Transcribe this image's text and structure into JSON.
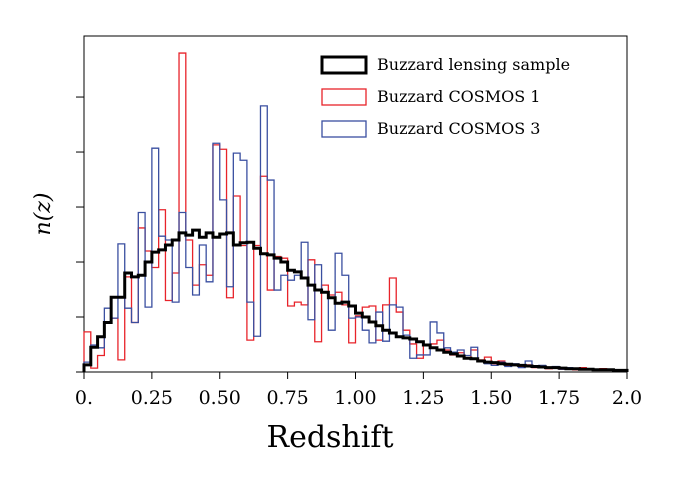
{
  "chart_data": {
    "type": "step-histogram",
    "title": "",
    "xlabel": "Redshift",
    "ylabel": "n(z)",
    "xlim": [
      0,
      2.0
    ],
    "ylim": [
      0,
      6.11
    ],
    "x_ticks": [
      0,
      0.25,
      0.5,
      0.75,
      1.0,
      1.25,
      1.5,
      1.75,
      2.0
    ],
    "x_tick_labels": [
      "0.",
      "0.25",
      "0.50",
      "0.75",
      "1.00",
      "1.25",
      "1.50",
      "1.75",
      "2.0"
    ],
    "y_ticks": [
      0,
      1,
      2,
      3,
      4,
      5
    ],
    "y_tick_labels_shown": false,
    "bin_width": 0.025,
    "legend_position": "top-right",
    "series": [
      {
        "name": "Buzzard lensing sample",
        "color": "#000000",
        "values": [
          0.13,
          0.45,
          0.64,
          0.9,
          1.36,
          1.36,
          1.8,
          1.73,
          1.76,
          2.0,
          2.18,
          2.22,
          2.31,
          2.4,
          2.53,
          2.49,
          2.58,
          2.45,
          2.53,
          2.45,
          2.51,
          2.53,
          2.31,
          2.35,
          2.36,
          2.25,
          2.15,
          2.13,
          2.07,
          2.0,
          1.85,
          1.82,
          1.71,
          1.58,
          1.49,
          1.45,
          1.35,
          1.25,
          1.27,
          1.2,
          1.07,
          1.0,
          0.91,
          0.84,
          0.76,
          0.71,
          0.64,
          0.62,
          0.6,
          0.55,
          0.49,
          0.44,
          0.4,
          0.36,
          0.33,
          0.29,
          0.25,
          0.24,
          0.2,
          0.18,
          0.17,
          0.15,
          0.14,
          0.13,
          0.12,
          0.11,
          0.1,
          0.09,
          0.08,
          0.08,
          0.07,
          0.06,
          0.06,
          0.05,
          0.05,
          0.04,
          0.04,
          0.04,
          0.03,
          0.03
        ]
      },
      {
        "name": "Buzzard COSMOS 1",
        "color": "#e8232a",
        "values": [
          0.73,
          0.07,
          0.3,
          0.9,
          0.98,
          0.22,
          1.73,
          0.9,
          2.62,
          2.2,
          1.9,
          2.95,
          1.3,
          1.8,
          5.8,
          2.4,
          1.58,
          1.95,
          1.76,
          4.13,
          4.05,
          1.35,
          3.2,
          2.3,
          0.58,
          2.3,
          3.56,
          1.49,
          2.1,
          2.07,
          1.2,
          1.27,
          1.22,
          2.04,
          0.55,
          1.58,
          1.4,
          1.45,
          1.22,
          0.53,
          1.02,
          1.18,
          1.2,
          0.58,
          1.22,
          1.71,
          1.09,
          0.76,
          0.51,
          0.25,
          0.49,
          0.51,
          0.58,
          0.4,
          0.31,
          0.35,
          0.25,
          0.4,
          0.22,
          0.27,
          0.15,
          0.2,
          0.12,
          0.14,
          0.1,
          0.13,
          0.08,
          0.1,
          0.06,
          0.09,
          0.05,
          0.07,
          0.04,
          0.08,
          0.05,
          0.04,
          0.06,
          0.03,
          0.04,
          0.03
        ]
      },
      {
        "name": "Buzzard COSMOS 3",
        "color": "#3a4fa0",
        "values": [
          0.18,
          0.49,
          0.44,
          1.16,
          0.98,
          2.33,
          1.16,
          0.9,
          2.9,
          1.18,
          4.07,
          2.47,
          2.4,
          1.27,
          2.9,
          1.9,
          1.4,
          2.31,
          1.64,
          4.16,
          3.13,
          1.55,
          3.98,
          3.85,
          1.27,
          0.65,
          4.84,
          3.49,
          1.49,
          1.76,
          1.67,
          1.76,
          2.36,
          0.95,
          1.95,
          1.45,
          0.76,
          2.16,
          1.76,
          0.98,
          1.0,
          0.76,
          0.53,
          1.09,
          0.56,
          1.22,
          1.18,
          0.67,
          0.25,
          0.31,
          0.31,
          0.91,
          0.71,
          0.44,
          0.36,
          0.4,
          0.3,
          0.45,
          0.2,
          0.15,
          0.12,
          0.18,
          0.1,
          0.15,
          0.08,
          0.2,
          0.1,
          0.12,
          0.07,
          0.1,
          0.05,
          0.08,
          0.06,
          0.04,
          0.06,
          0.03,
          0.05,
          0.04,
          0.03,
          0.02
        ]
      }
    ]
  }
}
